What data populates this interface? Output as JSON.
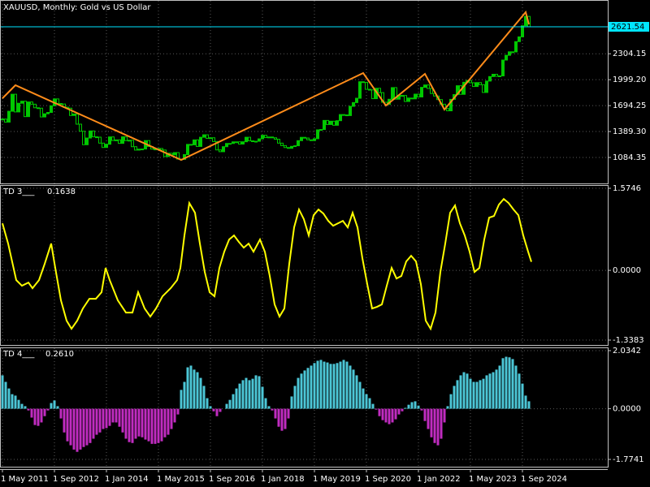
{
  "chart_data": [
    {
      "type": "candlestick",
      "title": "XAUUSD, Monthly:  Gold vs US Dollar",
      "color": "#00c800",
      "close": [
        1536,
        1500,
        1628,
        1828,
        1620,
        1722,
        1746,
        1565,
        1737,
        1711,
        1669,
        1664,
        1561,
        1598,
        1614,
        1692,
        1773,
        1719,
        1713,
        1675,
        1664,
        1578,
        1595,
        1476,
        1393,
        1234,
        1313,
        1396,
        1327,
        1323,
        1253,
        1202,
        1240,
        1326,
        1284,
        1291,
        1250,
        1327,
        1282,
        1287,
        1211,
        1171,
        1182,
        1184,
        1283,
        1213,
        1183,
        1184,
        1190,
        1172,
        1095,
        1134,
        1115,
        1142,
        1065,
        1061,
        1118,
        1238,
        1233,
        1291,
        1214,
        1322,
        1351,
        1309,
        1316,
        1272,
        1173,
        1152,
        1211,
        1249,
        1249,
        1268,
        1268,
        1242,
        1269,
        1322,
        1280,
        1271,
        1275,
        1303,
        1345,
        1318,
        1325,
        1316,
        1299,
        1253,
        1224,
        1201,
        1192,
        1215,
        1222,
        1282,
        1321,
        1313,
        1292,
        1283,
        1305,
        1409,
        1413,
        1520,
        1472,
        1511,
        1463,
        1517,
        1589,
        1585,
        1577,
        1686,
        1730,
        1781,
        1975,
        1968,
        1886,
        1879,
        1776,
        1898,
        1847,
        1734,
        1708,
        1769,
        1906,
        1770,
        1814,
        1813,
        1743,
        1783,
        1774,
        1829,
        1796,
        1909,
        1937,
        1896,
        1837,
        1807,
        1765,
        1711,
        1660,
        1633,
        1768,
        1824,
        1928,
        1827,
        1969,
        1990,
        1963,
        1919,
        1965,
        1940,
        1849,
        1983,
        2036,
        2063,
        2039,
        2044,
        2230,
        2286,
        2327,
        2326,
        2447,
        2503,
        2634,
        2744,
        2621.54
      ],
      "zigzag": {
        "color": "#ff8c1a",
        "x": [
          0,
          4,
          55,
          111,
          118,
          130,
          136,
          161,
          162
        ],
        "values": [
          1780,
          1934,
          1055,
          2077,
          1695,
          2068,
          1648,
          2793,
          2650
        ]
      },
      "current_price": 2621.54,
      "current_color": "#00e5ff",
      "xlim": [
        -0.75,
        186.25
      ],
      "ylim": [
        778.8,
        2936.6
      ],
      "yticks": [
        2304.15,
        {
          "value": 1999.2,
          "label": "1999.20"
        },
        1694.25,
        {
          "value": 1389.3,
          "label": "1389.30"
        },
        1084.35
      ],
      "grid": true
    },
    {
      "type": "line",
      "name": "TD 3___",
      "current": 0.1638,
      "color": "#ffff00",
      "x": [
        0,
        1.75,
        4.25,
        6,
        8,
        9.25,
        11.25,
        13,
        15,
        16.25,
        18,
        19.75,
        21.25,
        23,
        24.75,
        26.75,
        28.75,
        30.5,
        31.75,
        33,
        35.5,
        38,
        40,
        41.75,
        43.75,
        45.5,
        47.25,
        49.25,
        51.75,
        53.75,
        54.75,
        56,
        57.5,
        59.25,
        60.75,
        62.25,
        63.75,
        65.25,
        66.75,
        68.25,
        69.75,
        71.25,
        72.75,
        74.25,
        75.75,
        77.25,
        79.25,
        80.75,
        82.25,
        83.75,
        85.25,
        86.75,
        88.25,
        89.75,
        91.25,
        92.75,
        94.25,
        95.75,
        97.25,
        98.75,
        100.25,
        101.75,
        103.25,
        104.75,
        106.25,
        107.75,
        109.25,
        110.75,
        112.25,
        113.75,
        115.25,
        116.75,
        118.25,
        119.75,
        121.25,
        122.75,
        124.25,
        125.75,
        127.25,
        128.75,
        130.25,
        131.75,
        133.25,
        134.75,
        136.25,
        137.75,
        139.25,
        140.75,
        142.25,
        143.75,
        145.25,
        146.75,
        148.25,
        149.75,
        151.25,
        152.75,
        154.25,
        155.75,
        157.25,
        158.75,
        160.25,
        161.75,
        162.75
      ],
      "values": [
        0.903,
        0.514,
        -0.187,
        -0.296,
        -0.234,
        -0.343,
        -0.187,
        0.125,
        0.514,
        0.047,
        -0.576,
        -0.966,
        -1.121,
        -0.966,
        -0.732,
        -0.545,
        -0.545,
        -0.42,
        0.047,
        -0.187,
        -0.576,
        -0.81,
        -0.81,
        -0.42,
        -0.732,
        -0.887,
        -0.732,
        -0.498,
        -0.343,
        -0.187,
        0.047,
        0.67,
        1.292,
        1.105,
        0.514,
        -0.031,
        -0.42,
        -0.498,
        0.047,
        0.358,
        0.592,
        0.67,
        0.545,
        0.436,
        0.514,
        0.358,
        0.592,
        0.358,
        -0.109,
        -0.654,
        -0.887,
        -0.732,
        0.125,
        0.825,
        1.168,
        0.981,
        0.67,
        1.059,
        1.168,
        1.09,
        0.95,
        0.856,
        0.903,
        0.95,
        0.825,
        1.105,
        0.825,
        0.234,
        -0.265,
        -0.732,
        -0.701,
        -0.654,
        -0.296,
        0.047,
        -0.156,
        -0.109,
        0.171,
        0.28,
        0.171,
        -0.265,
        -0.966,
        -1.121,
        -0.81,
        -0.031,
        0.514,
        1.105,
        1.246,
        0.903,
        0.67,
        0.358,
        -0.031,
        0.047,
        0.592,
        1.012,
        1.043,
        1.261,
        1.37,
        1.292,
        1.168,
        1.059,
        0.67,
        0.358,
        0.1638
      ],
      "xlim": [
        -0.75,
        186.25
      ],
      "ylim": [
        -1.432,
        1.637
      ],
      "yticks": [
        1.5746,
        {
          "value": 0,
          "label": "0.0000"
        },
        -1.3383
      ],
      "grid": true
    },
    {
      "type": "bar",
      "name": "TD 4___",
      "current": {
        "value": 0.261,
        "label": "0.2610"
      },
      "colors": {
        "up": "#4cc6d6",
        "down": "#c02cc0"
      },
      "values": [
        1.17,
        0.94,
        0.71,
        0.51,
        0.46,
        0.31,
        0.17,
        0.09,
        -0.06,
        -0.31,
        -0.57,
        -0.6,
        -0.48,
        -0.26,
        -0.06,
        0.2,
        0.29,
        0.09,
        -0.34,
        -0.83,
        -1.14,
        -1.28,
        -1.43,
        -1.51,
        -1.43,
        -1.34,
        -1.28,
        -1.2,
        -1.05,
        -0.91,
        -0.83,
        -0.71,
        -0.68,
        -0.6,
        -0.48,
        -0.48,
        -0.63,
        -0.83,
        -1.05,
        -1.17,
        -1.2,
        -1.05,
        -0.97,
        -1,
        -1.08,
        -1.14,
        -1.23,
        -1.23,
        -1.2,
        -1.14,
        -1,
        -0.91,
        -0.71,
        -0.48,
        -0.2,
        0.66,
        0.94,
        1.45,
        1.51,
        1.37,
        1.28,
        1.08,
        0.8,
        0.37,
        0.09,
        -0.09,
        -0.26,
        -0.11,
        0,
        0.17,
        0.31,
        0.51,
        0.71,
        0.88,
        1,
        1.08,
        1,
        1.05,
        1.17,
        1.14,
        0.77,
        0.37,
        0.09,
        -0.06,
        -0.34,
        -0.63,
        -0.77,
        -0.71,
        -0.34,
        0.43,
        0.8,
        1.08,
        1.23,
        1.34,
        1.43,
        1.51,
        1.6,
        1.68,
        1.71,
        1.65,
        1.62,
        1.57,
        1.57,
        1.6,
        1.65,
        1.71,
        1.65,
        1.51,
        1.37,
        1.17,
        0.94,
        0.71,
        0.51,
        0.37,
        0.17,
        -0.03,
        -0.26,
        -0.4,
        -0.48,
        -0.54,
        -0.48,
        -0.37,
        -0.2,
        -0.09,
        0.03,
        0.14,
        0.23,
        0.26,
        0.11,
        -0.06,
        -0.43,
        -0.71,
        -1,
        -1.2,
        -1.28,
        -1.05,
        -0.48,
        0.09,
        0.51,
        0.8,
        1,
        1.17,
        1.28,
        1.23,
        1.05,
        0.94,
        0.94,
        1,
        1.05,
        1.17,
        1.23,
        1.28,
        1.37,
        1.51,
        1.77,
        1.82,
        1.8,
        1.74,
        1.51,
        1.23,
        0.88,
        0.46,
        0.261
      ],
      "xlim": [
        -0.75,
        186.25
      ],
      "ylim": [
        -2.03,
        2.148
      ],
      "yticks": [
        2.0342,
        {
          "value": 0,
          "label": "0.0000"
        },
        -1.7741
      ],
      "xticks": [
        {
          "value": 0,
          "label": "1 May 2011"
        },
        {
          "value": 16,
          "label": "1 Sep 2012"
        },
        {
          "value": 32,
          "label": "1 Jan 2014"
        },
        {
          "value": 48,
          "label": "1 May 2015"
        },
        {
          "value": 64,
          "label": "1 Sep 2016"
        },
        {
          "value": 80,
          "label": "1 Jan 2018"
        },
        {
          "value": 96,
          "label": "1 May 2019"
        },
        {
          "value": 112,
          "label": "1 Sep 2020"
        },
        {
          "value": 128,
          "label": "1 Jan 2022"
        },
        {
          "value": 144,
          "label": "1 May 2023"
        },
        {
          "value": 160,
          "label": "1 Sep 2024"
        }
      ],
      "grid": true
    }
  ]
}
